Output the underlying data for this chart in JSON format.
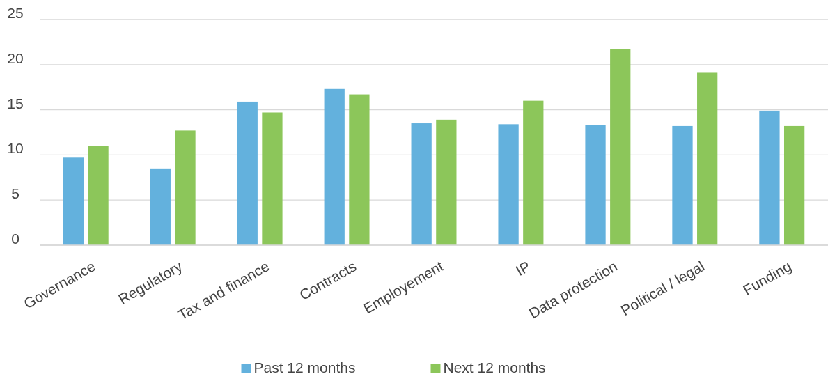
{
  "chart_data": {
    "type": "bar",
    "categories": [
      "Governance",
      "Regulatory",
      "Tax and finance",
      "Contracts",
      "Employement",
      "IP",
      "Data protection",
      "Political / legal",
      "Funding"
    ],
    "series": [
      {
        "name": "Past 12 months",
        "color": "#63b1dd",
        "values": [
          9.7,
          8.5,
          15.9,
          17.3,
          13.5,
          13.4,
          13.3,
          13.2,
          14.9
        ]
      },
      {
        "name": "Next 12 months",
        "color": "#8cc65a",
        "values": [
          11.0,
          12.7,
          14.7,
          16.7,
          13.9,
          16.0,
          21.7,
          19.1,
          13.2
        ]
      }
    ],
    "ylim": [
      0,
      25
    ],
    "yticks": [
      0,
      5,
      10,
      15,
      20,
      25
    ],
    "grid": "y",
    "legend": "bottom"
  }
}
